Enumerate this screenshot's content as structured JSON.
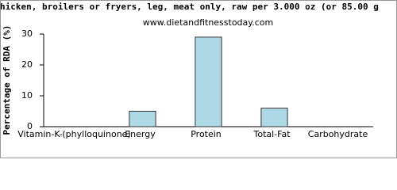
{
  "chart_data": {
    "type": "bar",
    "title": "hicken, broilers or fryers, leg, meat only, raw per 3.000 oz (or 85.00 g",
    "subtitle": "www.dietandfitnesstoday.com",
    "y_label": "Percentage of RDA (%)",
    "categories": [
      "Vitamin-K-(phylloquinone)",
      "Energy",
      "Protein",
      "Total-Fat",
      "Carbohydrate"
    ],
    "values": [
      0,
      5,
      29,
      6,
      0
    ],
    "color": "#add8e6",
    "ylim": [
      0,
      30
    ],
    "yticks": [
      0,
      10,
      20,
      30
    ],
    "grid": false
  }
}
